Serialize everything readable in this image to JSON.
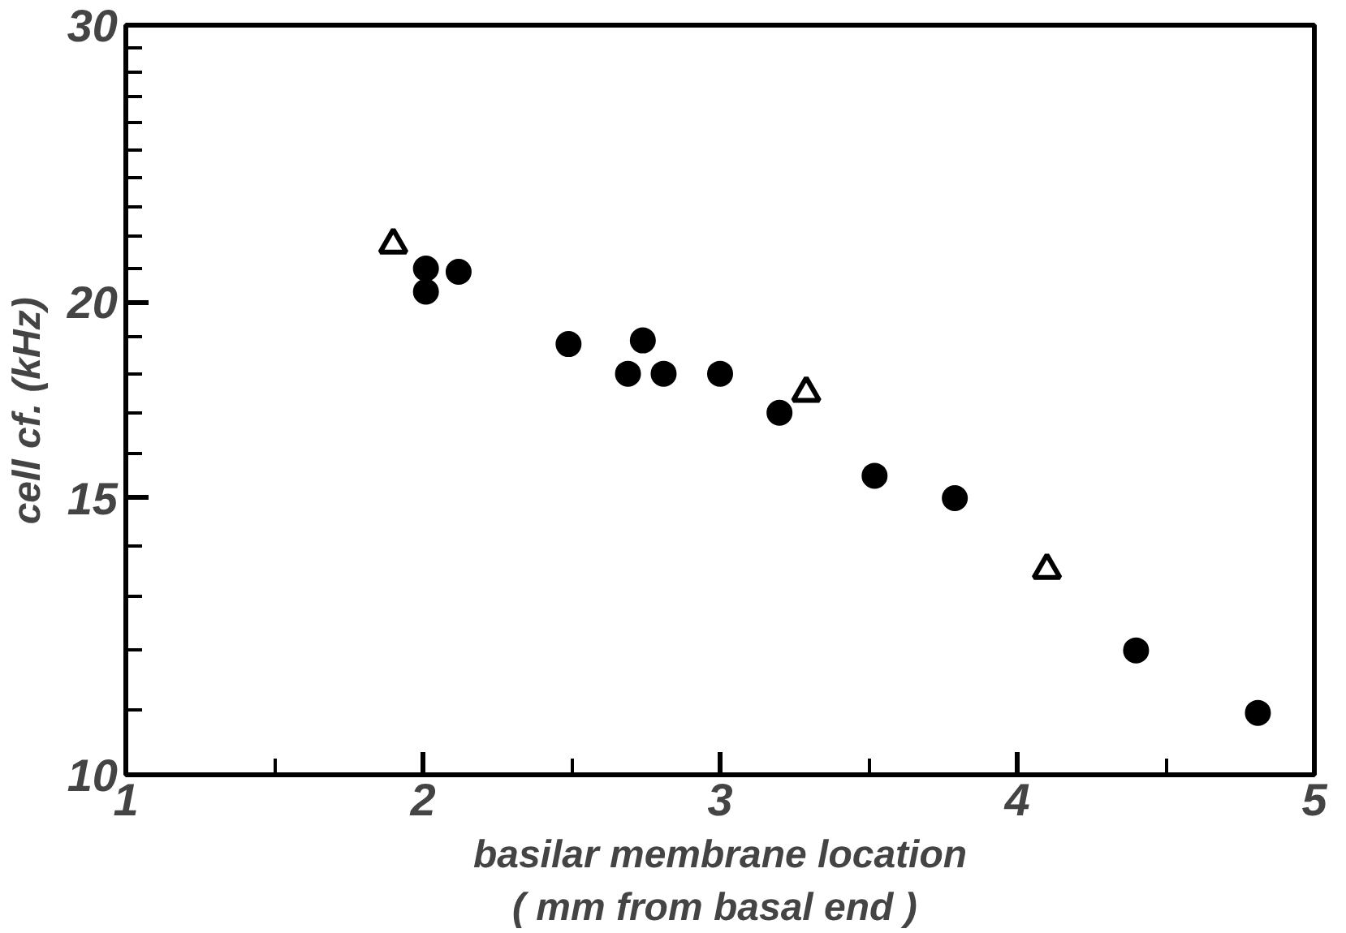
{
  "chart_data": {
    "type": "scatter",
    "xlabel": "basilar membrane location\n( mm  from basal end )",
    "ylabel": "cell  cf.  (kHz)",
    "log": "y",
    "grid": false,
    "xlim": [
      1,
      5
    ],
    "ylim": [
      10,
      30
    ],
    "xticks": [
      1,
      {
        "value": 1.5,
        "label": null
      },
      2,
      {
        "value": 2.5,
        "label": null
      },
      3,
      {
        "value": 3.5,
        "label": null
      },
      4,
      {
        "value": 4.5,
        "label": null
      },
      5
    ],
    "yticks": [
      10,
      {
        "value": 11,
        "label": null
      },
      {
        "value": 12,
        "label": null
      },
      {
        "value": 13,
        "label": null
      },
      {
        "value": 14,
        "label": null
      },
      15,
      {
        "value": 16,
        "label": null
      },
      {
        "value": 17,
        "label": null
      },
      {
        "value": 18,
        "label": null
      },
      {
        "value": 19,
        "label": null
      },
      20,
      {
        "value": 21,
        "label": null
      },
      {
        "value": 22,
        "label": null
      },
      {
        "value": 23,
        "label": null
      },
      {
        "value": 24,
        "label": null
      },
      {
        "value": 25,
        "label": null
      },
      {
        "value": 26,
        "label": null
      },
      {
        "value": 27,
        "label": null
      },
      {
        "value": 28,
        "label": null
      },
      {
        "value": 29,
        "label": null
      },
      30
    ],
    "series": [
      {
        "color": "#000000",
        "marker": "circle",
        "x": [
          2.01,
          2.01,
          2.12,
          2.49,
          2.74,
          2.69,
          2.81,
          3.0,
          3.2,
          3.52,
          3.79,
          4.4,
          4.81
        ],
        "values": [
          21.0,
          20.3,
          20.9,
          18.8,
          18.9,
          18.0,
          18.0,
          18.0,
          17.0,
          15.5,
          15.0,
          12.0,
          10.95
        ]
      },
      {
        "color": "#000000",
        "marker": "triangle",
        "x": [
          1.9,
          3.29,
          4.1
        ],
        "values": [
          21.75,
          17.5,
          13.5
        ]
      }
    ]
  }
}
